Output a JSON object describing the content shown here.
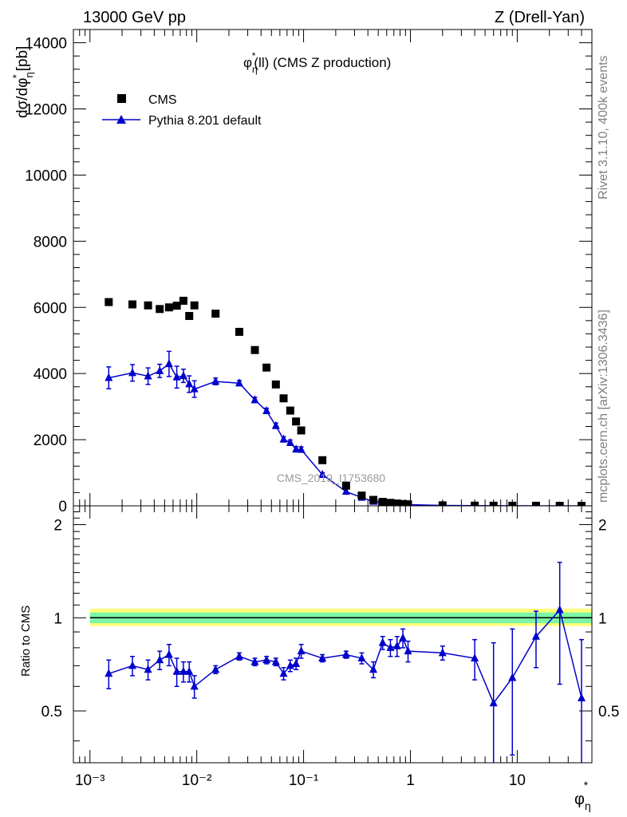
{
  "header": {
    "energy_label": "13000 GeV pp",
    "process_label": "Z (Drell-Yan)"
  },
  "side_labels": {
    "rivet": "Rivet 3.1.10,  400k events",
    "mcplots": "mcplots.cern.ch [arXiv:1306.3436]"
  },
  "chart_data": [
    {
      "type": "scatter",
      "panel": "main",
      "title": "φ*η(ll) (CMS Z production)",
      "ylabel": "dσ/dφ*η [pb]",
      "xscale": "log",
      "xlim": [
        0.0007,
        50
      ],
      "ylim": [
        0,
        14400
      ],
      "yticks": [
        0,
        2000,
        4000,
        6000,
        8000,
        10000,
        12000,
        14000
      ],
      "watermark": "CMS_2019_I1753680",
      "legend": {
        "position": "top-left",
        "entries": [
          "CMS",
          "Pythia 8.201 default"
        ]
      },
      "series": [
        {
          "name": "CMS",
          "marker": "square",
          "color": "#000000",
          "x": [
            0.0015,
            0.0025,
            0.0035,
            0.0045,
            0.0055,
            0.0065,
            0.0075,
            0.0085,
            0.0095,
            0.015,
            0.025,
            0.035,
            0.045,
            0.055,
            0.065,
            0.075,
            0.085,
            0.095,
            0.15,
            0.25,
            0.35,
            0.45,
            0.55,
            0.65,
            0.75,
            0.85,
            0.95,
            2,
            4,
            6,
            9,
            15,
            25,
            40
          ],
          "y": [
            6160,
            6090,
            6060,
            5950,
            6000,
            6050,
            6200,
            5740,
            6060,
            5810,
            5260,
            4710,
            4180,
            3670,
            3250,
            2880,
            2550,
            2280,
            1380,
            610,
            310,
            180,
            120,
            90,
            70,
            55,
            45,
            15,
            5,
            3,
            2,
            1,
            0.5,
            0.3
          ]
        },
        {
          "name": "Pythia 8.201 default",
          "marker": "triangle",
          "color": "#0000cc",
          "x": [
            0.0015,
            0.0025,
            0.0035,
            0.0045,
            0.0055,
            0.0065,
            0.0075,
            0.0085,
            0.0095,
            0.015,
            0.025,
            0.035,
            0.045,
            0.055,
            0.065,
            0.075,
            0.085,
            0.095,
            0.15,
            0.25,
            0.35,
            0.45,
            0.55,
            0.65,
            0.75,
            0.85,
            0.95,
            2,
            4,
            6,
            9,
            15,
            25,
            40
          ],
          "y": [
            3870,
            4020,
            3920,
            4080,
            4290,
            3890,
            3930,
            3680,
            3530,
            3760,
            3710,
            3200,
            2870,
            2420,
            2010,
            1910,
            1710,
            1700,
            940,
            430,
            250,
            130,
            100,
            70,
            56,
            45,
            35,
            12,
            3.7,
            1.5,
            1.3,
            0.85,
            0.53,
            0.16
          ],
          "yerr": [
            330,
            250,
            250,
            200,
            380,
            330,
            200,
            250,
            250,
            100,
            80,
            80,
            80,
            80,
            80,
            80,
            80,
            80,
            60,
            30,
            20,
            10,
            8,
            6,
            5,
            4,
            3,
            1,
            0.5,
            0.3,
            0.2,
            0.2,
            0.2,
            0.1
          ]
        }
      ]
    },
    {
      "type": "scatter",
      "panel": "ratio",
      "ylabel": "Ratio to CMS",
      "xlabel": "φ*η",
      "xscale": "log",
      "xlim": [
        0.0007,
        50
      ],
      "ylim": [
        0.34,
        2.3
      ],
      "yticks": [
        0.5,
        1,
        2
      ],
      "xticks": [
        0.001,
        0.01,
        0.1,
        1,
        10
      ],
      "xtick_labels": [
        "10⁻³",
        "10⁻²",
        "10⁻¹",
        "1",
        "10"
      ],
      "bands": [
        {
          "color": "#ffff7a",
          "lo": 0.94,
          "hi": 1.07
        },
        {
          "color": "#7df5a6",
          "lo": 0.96,
          "hi": 1.04
        }
      ],
      "series": [
        {
          "name": "Pythia 8.201 default",
          "color": "#0000cc",
          "x": [
            0.0015,
            0.0025,
            0.0035,
            0.0045,
            0.0055,
            0.0065,
            0.0075,
            0.0085,
            0.0095,
            0.015,
            0.025,
            0.035,
            0.045,
            0.055,
            0.065,
            0.075,
            0.085,
            0.095,
            0.15,
            0.25,
            0.35,
            0.45,
            0.55,
            0.65,
            0.75,
            0.85,
            0.95,
            2,
            4,
            6,
            9,
            15,
            25,
            40
          ],
          "y": [
            0.66,
            0.7,
            0.68,
            0.73,
            0.76,
            0.67,
            0.67,
            0.67,
            0.6,
            0.68,
            0.75,
            0.72,
            0.73,
            0.72,
            0.66,
            0.7,
            0.71,
            0.78,
            0.74,
            0.76,
            0.74,
            0.68,
            0.83,
            0.8,
            0.81,
            0.86,
            0.78,
            0.77,
            0.74,
            0.53,
            0.64,
            0.87,
            1.06,
            0.55
          ],
          "yerr": [
            0.07,
            0.05,
            0.05,
            0.05,
            0.06,
            0.07,
            0.05,
            0.05,
            0.05,
            0.02,
            0.02,
            0.02,
            0.02,
            0.02,
            0.03,
            0.03,
            0.03,
            0.04,
            0.02,
            0.02,
            0.03,
            0.04,
            0.04,
            0.05,
            0.06,
            0.06,
            0.06,
            0.04,
            0.11,
            0.3,
            0.28,
            0.18,
            0.45,
            0.3
          ]
        }
      ]
    }
  ]
}
